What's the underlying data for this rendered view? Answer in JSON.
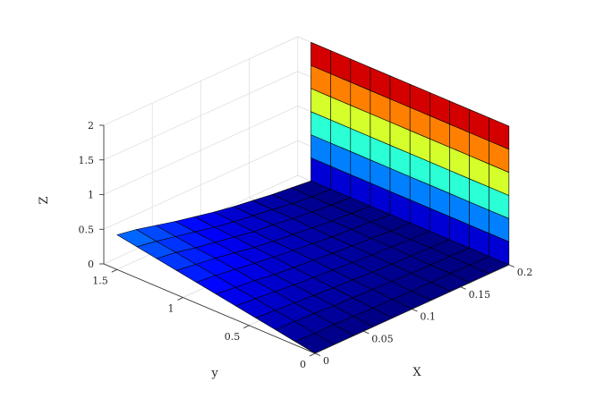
{
  "chart_data": {
    "type": "surface",
    "colormap": "jet",
    "title": "",
    "xlabel": "X",
    "ylabel": "y",
    "zlabel": "Z",
    "xlim": [
      0,
      0.2
    ],
    "ylim": [
      0,
      1.6
    ],
    "zlim": [
      0,
      2
    ],
    "x_ticks": [
      "0",
      "0.05",
      "0.1",
      "0.15",
      "0.2"
    ],
    "y_ticks": [
      "0",
      "0.5",
      "1",
      "1.5"
    ],
    "z_ticks": [
      "0",
      "0.5",
      "1",
      "1.5",
      "2"
    ],
    "grid": true,
    "x": [
      0,
      0.02,
      0.04,
      0.06,
      0.08,
      0.1,
      0.12,
      0.14,
      0.16,
      0.18,
      0.2
    ],
    "y": [
      0,
      0.15,
      0.3,
      0.45,
      0.6,
      0.75,
      0.9,
      1.05,
      1.2,
      1.35,
      1.5
    ],
    "z": [
      [
        0.0,
        0.0,
        0.0,
        0.0,
        0.0,
        0.0,
        0.0,
        0.0,
        0.0,
        0.0,
        0.0
      ],
      [
        0.05,
        0.04,
        0.04,
        0.03,
        0.02,
        0.02,
        0.01,
        0.01,
        0.01,
        0.0,
        0.0
      ],
      [
        0.1,
        0.09,
        0.08,
        0.06,
        0.05,
        0.04,
        0.03,
        0.02,
        0.01,
        0.01,
        0.0
      ],
      [
        0.15,
        0.13,
        0.11,
        0.09,
        0.07,
        0.06,
        0.04,
        0.03,
        0.02,
        0.01,
        0.0
      ],
      [
        0.2,
        0.18,
        0.15,
        0.12,
        0.1,
        0.08,
        0.06,
        0.04,
        0.03,
        0.01,
        0.0
      ],
      [
        0.25,
        0.22,
        0.19,
        0.15,
        0.12,
        0.1,
        0.07,
        0.05,
        0.03,
        0.01,
        0.0
      ],
      [
        0.3,
        0.27,
        0.23,
        0.19,
        0.15,
        0.12,
        0.09,
        0.06,
        0.04,
        0.02,
        0.0
      ],
      [
        0.35,
        0.31,
        0.27,
        0.22,
        0.17,
        0.13,
        0.1,
        0.07,
        0.04,
        0.02,
        0.0
      ],
      [
        0.4,
        0.36,
        0.3,
        0.25,
        0.2,
        0.15,
        0.12,
        0.08,
        0.05,
        0.02,
        0.0
      ],
      [
        0.45,
        0.4,
        0.34,
        0.28,
        0.22,
        0.17,
        0.13,
        0.09,
        0.05,
        0.02,
        0.0
      ],
      [
        0.5,
        0.45,
        0.38,
        0.31,
        0.25,
        0.19,
        0.14,
        0.1,
        0.06,
        0.03,
        0.0
      ]
    ],
    "wall": {
      "x": 0.2,
      "y": [
        0,
        0.15,
        0.3,
        0.45,
        0.6,
        0.75,
        0.9,
        1.05,
        1.2,
        1.35,
        1.5
      ],
      "z_min": 0,
      "z_max": 2
    }
  }
}
